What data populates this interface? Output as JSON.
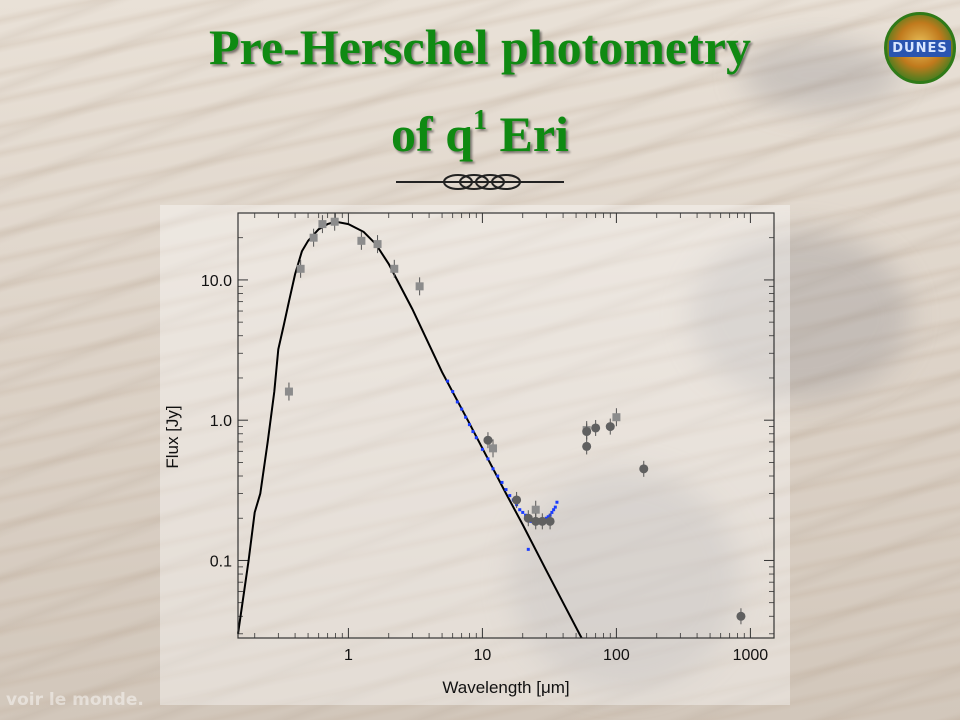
{
  "slide": {
    "title_line1": "Pre-Herschel photometry",
    "title_line2_pre": "of q",
    "title_line2_sup": "1",
    "title_line2_post": " Eri",
    "logo_text": "DUNES",
    "watermark": "voir le monde."
  },
  "colors": {
    "title": "#0f8a12",
    "model_line": "#000000",
    "spectrum": "#1a3cff",
    "photometry_square": "#8c8c8c",
    "photometry_circle": "#606060"
  },
  "chart_data": {
    "type": "scatter",
    "xscale": "log",
    "yscale": "log",
    "xlim": [
      0.15,
      1500
    ],
    "ylim": [
      0.028,
      30
    ],
    "xlabel": "Wavelength [μm]",
    "ylabel": "Flux [Jy]",
    "x_ticks": [
      {
        "value": 1,
        "label": "1"
      },
      {
        "value": 10,
        "label": "10"
      },
      {
        "value": 100,
        "label": "100"
      },
      {
        "value": 1000,
        "label": "1000"
      }
    ],
    "y_ticks": [
      {
        "value": 0.1,
        "label": "0.1"
      },
      {
        "value": 1.0,
        "label": "1.0"
      },
      {
        "value": 10.0,
        "label": "10.0"
      }
    ],
    "series": [
      {
        "kind": "line",
        "x": [
          0.15,
          0.18,
          0.2,
          0.22,
          0.25,
          0.28,
          0.3,
          0.33,
          0.36,
          0.4,
          0.45,
          0.5,
          0.6,
          0.7,
          0.8,
          1.0,
          1.3,
          1.6,
          2.0,
          3.0,
          5.0,
          8.0,
          10,
          15,
          20,
          30,
          40,
          55
        ],
        "y": [
          0.03,
          0.1,
          0.22,
          0.3,
          0.7,
          1.6,
          3.2,
          4.8,
          7.0,
          11,
          16,
          19,
          23,
          25,
          26,
          25,
          22,
          18,
          13,
          6.2,
          2.2,
          0.95,
          0.63,
          0.3,
          0.18,
          0.085,
          0.05,
          0.028
        ]
      },
      {
        "kind": "points",
        "x": [
          5.5,
          6.0,
          6.5,
          7.0,
          7.5,
          8.0,
          8.5,
          9.0,
          10,
          11,
          12,
          13,
          14,
          15,
          16,
          17,
          18,
          19,
          20,
          21,
          22,
          22,
          23,
          24,
          25,
          26,
          27,
          28,
          29,
          30,
          31,
          32,
          33,
          34,
          35,
          36
        ],
        "y": [
          1.9,
          1.6,
          1.35,
          1.2,
          1.05,
          0.93,
          0.83,
          0.75,
          0.62,
          0.53,
          0.45,
          0.4,
          0.36,
          0.32,
          0.29,
          0.27,
          0.25,
          0.23,
          0.22,
          0.21,
          0.2,
          0.12,
          0.19,
          0.19,
          0.185,
          0.185,
          0.19,
          0.19,
          0.195,
          0.2,
          0.205,
          0.21,
          0.22,
          0.23,
          0.24,
          0.26
        ]
      },
      {
        "kind": "squares",
        "x": [
          0.36,
          0.44,
          0.55,
          0.64,
          0.79,
          1.25,
          1.65,
          2.2,
          3.4,
          12,
          25,
          60,
          100
        ],
        "y": [
          1.6,
          12,
          20,
          25,
          26,
          19,
          18,
          12,
          9,
          0.63,
          0.23,
          0.85,
          1.05
        ]
      },
      {
        "kind": "circles",
        "x": [
          11,
          18,
          22,
          25,
          28,
          32,
          60,
          60,
          70,
          90,
          160,
          850
        ],
        "y": [
          0.72,
          0.27,
          0.2,
          0.19,
          0.19,
          0.19,
          0.65,
          0.83,
          0.88,
          0.9,
          0.45,
          0.04
        ]
      }
    ]
  }
}
